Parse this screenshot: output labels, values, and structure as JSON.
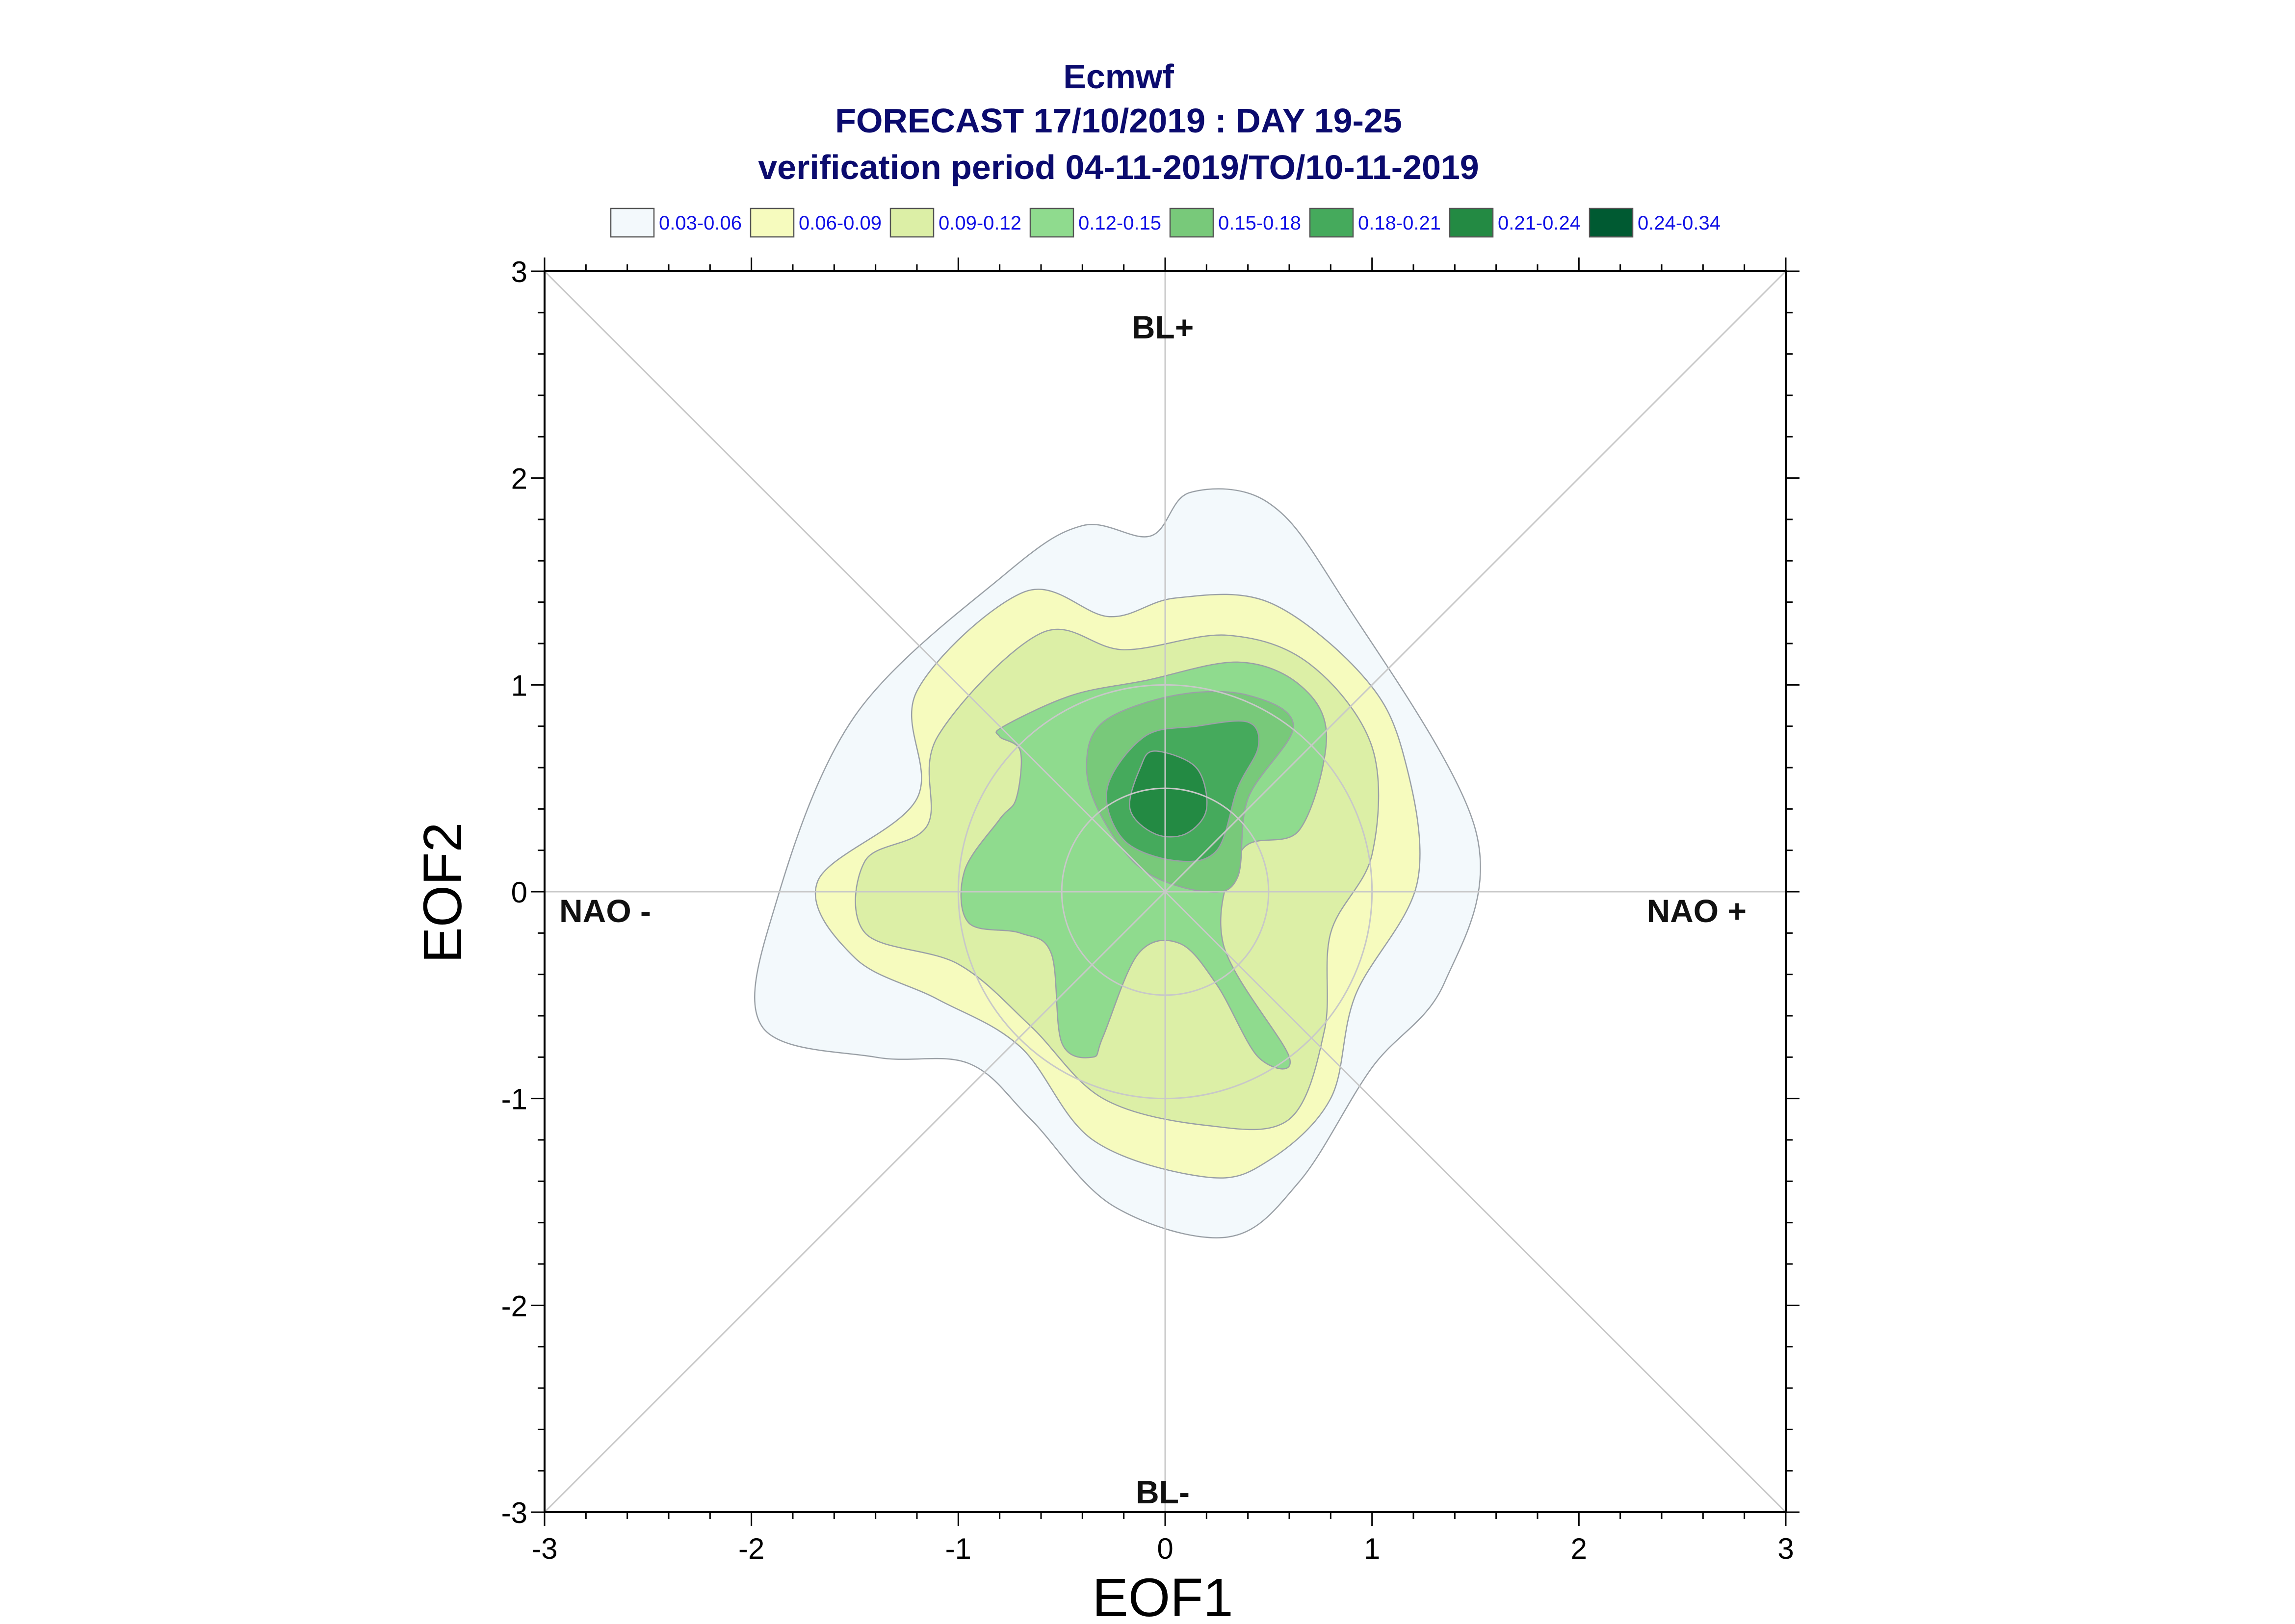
{
  "chart_data": {
    "type": "contour",
    "title": "Ecmwf",
    "subtitle": "FORECAST 17/10/2019 : DAY 19-25",
    "subtitle2": "verification period 04-11-2019/TO/10-11-2019",
    "xlabel": "EOF1",
    "ylabel": "EOF2",
    "xlim": [
      -3,
      3
    ],
    "ylim": [
      -3,
      3
    ],
    "x_ticks": [
      "-3",
      "-2",
      "-1",
      "0",
      "1",
      "2",
      "3"
    ],
    "y_ticks": [
      "3",
      "2",
      "1",
      "0",
      "-1",
      "-2",
      "-3"
    ],
    "x_tick_values": [
      -3,
      -2,
      -1,
      0,
      1,
      2,
      3
    ],
    "y_tick_values": [
      3,
      2,
      1,
      0,
      -1,
      -2,
      -3
    ],
    "legend": [
      {
        "label": "0.03-0.06",
        "color": "#f3f9fc"
      },
      {
        "label": "0.06-0.09",
        "color": "#f6fbbe"
      },
      {
        "label": "0.09-0.12",
        "color": "#dcefa6"
      },
      {
        "label": "0.12-0.15",
        "color": "#8fdb8e"
      },
      {
        "label": "0.15-0.18",
        "color": "#78c97a"
      },
      {
        "label": "0.18-0.21",
        "color": "#45aa5c"
      },
      {
        "label": "0.21-0.24",
        "color": "#238a43"
      },
      {
        "label": "0.24-0.34",
        "color": "#005a32"
      }
    ],
    "region_labels": {
      "top": "BL+",
      "bottom": "BL-",
      "left": "NAO -",
      "right": "NAO +"
    },
    "contours": [
      {
        "level": "0.03-0.06",
        "color": "#f3f9fc",
        "points": [
          [
            -0.78,
            1.53
          ],
          [
            -0.4,
            1.77
          ],
          [
            -0.07,
            1.72
          ],
          [
            0.12,
            1.93
          ],
          [
            0.5,
            1.88
          ],
          [
            0.85,
            1.43
          ],
          [
            1.5,
            0.3
          ],
          [
            1.35,
            -0.44
          ],
          [
            1.0,
            -0.85
          ],
          [
            0.65,
            -1.4
          ],
          [
            0.3,
            -1.67
          ],
          [
            -0.25,
            -1.52
          ],
          [
            -0.65,
            -1.1
          ],
          [
            -0.95,
            -0.83
          ],
          [
            -1.4,
            -0.8
          ],
          [
            -1.95,
            -0.65
          ],
          [
            -1.88,
            -0.05
          ],
          [
            -1.5,
            0.85
          ]
        ]
      },
      {
        "level": "0.06-0.09",
        "color": "#f6fbbe",
        "points": [
          [
            -0.68,
            1.45
          ],
          [
            -0.27,
            1.33
          ],
          [
            0.05,
            1.42
          ],
          [
            0.5,
            1.4
          ],
          [
            0.95,
            1.05
          ],
          [
            1.15,
            0.67
          ],
          [
            1.22,
            0.05
          ],
          [
            0.92,
            -0.5
          ],
          [
            0.8,
            -1.0
          ],
          [
            0.5,
            -1.3
          ],
          [
            0.2,
            -1.38
          ],
          [
            -0.35,
            -1.2
          ],
          [
            -0.7,
            -0.75
          ],
          [
            -1.1,
            -0.52
          ],
          [
            -1.5,
            -0.32
          ],
          [
            -1.68,
            0.05
          ],
          [
            -1.2,
            0.45
          ],
          [
            -1.2,
            0.97
          ]
        ]
      },
      {
        "level": "0.09-0.12",
        "color": "#dcefa6",
        "points": [
          [
            -0.6,
            1.25
          ],
          [
            -0.2,
            1.17
          ],
          [
            0.3,
            1.24
          ],
          [
            0.7,
            1.1
          ],
          [
            1.0,
            0.7
          ],
          [
            1.0,
            0.18
          ],
          [
            0.8,
            -0.2
          ],
          [
            0.77,
            -0.67
          ],
          [
            0.6,
            -1.1
          ],
          [
            0.2,
            -1.13
          ],
          [
            -0.3,
            -1.0
          ],
          [
            -0.65,
            -0.65
          ],
          [
            -1.0,
            -0.35
          ],
          [
            -1.45,
            -0.2
          ],
          [
            -1.45,
            0.15
          ],
          [
            -1.15,
            0.32
          ],
          [
            -1.1,
            0.75
          ]
        ]
      },
      {
        "level": "0.12-0.15",
        "color": "#8fdb8e",
        "points": [
          [
            -0.78,
            0.8
          ],
          [
            -0.45,
            0.95
          ],
          [
            -0.1,
            1.02
          ],
          [
            0.35,
            1.11
          ],
          [
            0.65,
            1.0
          ],
          [
            0.78,
            0.75
          ],
          [
            0.65,
            0.3
          ],
          [
            0.37,
            0.2
          ],
          [
            0.28,
            -0.25
          ],
          [
            0.6,
            -0.8
          ],
          [
            0.45,
            -0.8
          ],
          [
            0.25,
            -0.45
          ],
          [
            0.07,
            -0.25
          ],
          [
            -0.13,
            -0.3
          ],
          [
            -0.3,
            -0.7
          ],
          [
            -0.35,
            -0.8
          ],
          [
            -0.5,
            -0.73
          ],
          [
            -0.55,
            -0.3
          ],
          [
            -0.7,
            -0.2
          ],
          [
            -0.95,
            -0.15
          ],
          [
            -0.97,
            0.1
          ],
          [
            -0.8,
            0.35
          ],
          [
            -0.72,
            0.45
          ],
          [
            -0.7,
            0.68
          ],
          [
            -0.8,
            0.75
          ]
        ]
      },
      {
        "level": "0.15-0.18",
        "color": "#78c97a",
        "points": [
          [
            -0.3,
            0.82
          ],
          [
            0.05,
            0.95
          ],
          [
            0.4,
            0.95
          ],
          [
            0.62,
            0.8
          ],
          [
            0.4,
            0.45
          ],
          [
            0.35,
            0.07
          ],
          [
            0.2,
            0.0
          ],
          [
            -0.1,
            0.1
          ],
          [
            -0.3,
            0.35
          ],
          [
            -0.38,
            0.6
          ]
        ]
      },
      {
        "level": "0.18-0.21",
        "color": "#45aa5c",
        "points": [
          [
            -0.1,
            0.75
          ],
          [
            0.15,
            0.8
          ],
          [
            0.4,
            0.82
          ],
          [
            0.45,
            0.7
          ],
          [
            0.35,
            0.5
          ],
          [
            0.25,
            0.2
          ],
          [
            0.05,
            0.15
          ],
          [
            -0.2,
            0.25
          ],
          [
            -0.28,
            0.5
          ]
        ]
      },
      {
        "level": "0.21-0.24",
        "color": "#238a43",
        "points": [
          [
            -0.05,
            0.68
          ],
          [
            0.15,
            0.6
          ],
          [
            0.2,
            0.4
          ],
          [
            0.1,
            0.28
          ],
          [
            -0.05,
            0.28
          ],
          [
            -0.17,
            0.4
          ],
          [
            -0.12,
            0.6
          ]
        ]
      }
    ],
    "grid_circles": [
      1,
      0.5
    ]
  }
}
